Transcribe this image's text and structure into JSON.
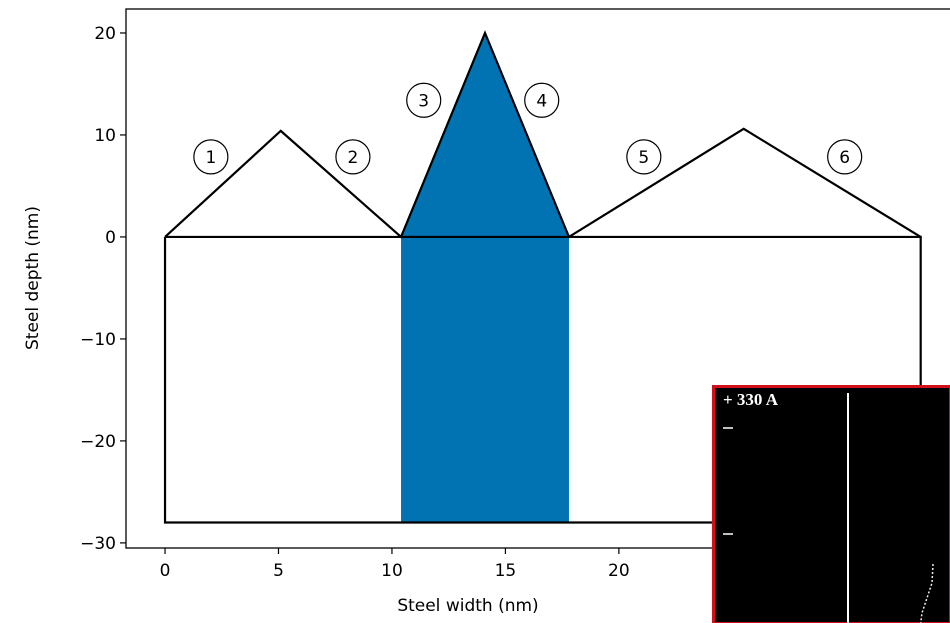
{
  "chart_data": {
    "type": "polygon",
    "xlabel": "Steel width (nm)",
    "ylabel": "Steel depth (nm)",
    "xlim": [
      -1.72,
      34.9
    ],
    "ylim": [
      -30.5,
      22.35
    ],
    "xticks": [
      0,
      5,
      10,
      15,
      20
    ],
    "yticks": [
      {
        "value": -30,
        "label": "−30"
      },
      {
        "value": -20,
        "label": "−20"
      },
      {
        "value": -10,
        "label": "−10"
      },
      0,
      10,
      20
    ],
    "shapes": [
      {
        "x": [
          10.4,
          14.1,
          17.8,
          17.8,
          10.4
        ],
        "y": [
          0,
          20,
          0,
          -28,
          -28
        ],
        "fill": "#0173b2"
      },
      {
        "x": [
          0,
          33.3,
          33.3,
          0,
          0
        ],
        "y": [
          0,
          0,
          -28,
          -28,
          0
        ],
        "fill": "none"
      },
      {
        "x": [
          0,
          5.1,
          10.4,
          14.1,
          17.8,
          25.5,
          33.3
        ],
        "y": [
          0,
          10.4,
          0,
          20,
          0,
          10.6,
          0
        ],
        "fill": "none"
      }
    ],
    "annotations": [
      {
        "text": "1",
        "x": 2.02,
        "y": 7.85
      },
      {
        "text": "2",
        "x": 8.28,
        "y": 7.85
      },
      {
        "text": "3",
        "x": 11.4,
        "y": 13.4
      },
      {
        "text": "4",
        "x": 16.6,
        "y": 13.4
      },
      {
        "text": "5",
        "x": 21.1,
        "y": 7.85
      },
      {
        "text": "6",
        "x": 29.95,
        "y": 7.85
      }
    ]
  },
  "inset": {
    "label": "+ 330 A"
  }
}
